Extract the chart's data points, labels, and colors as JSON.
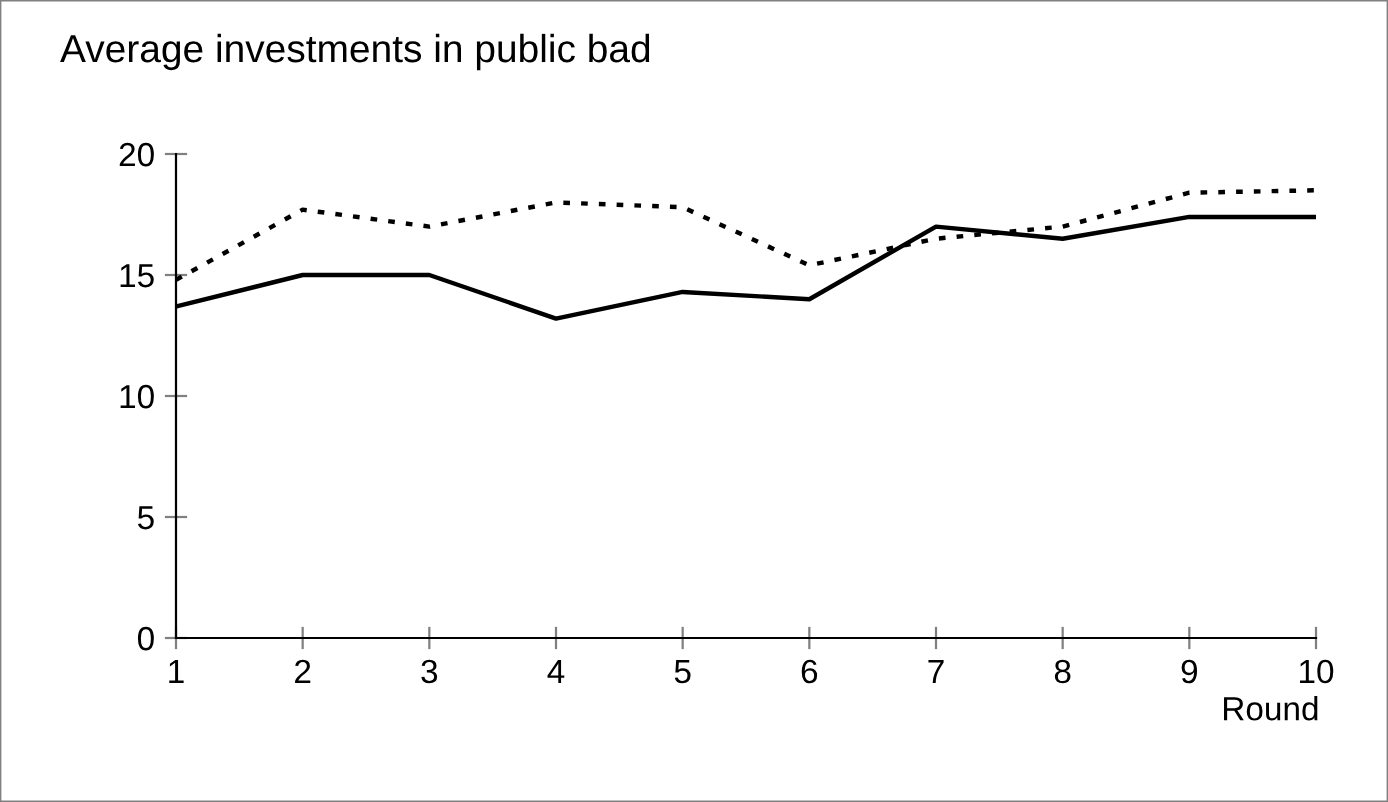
{
  "chart_data": {
    "type": "line",
    "title": "Average investments in public bad",
    "xlabel": "Round",
    "x": [
      1,
      2,
      3,
      4,
      5,
      6,
      7,
      8,
      9,
      10
    ],
    "series": [
      {
        "color": "#000000",
        "line_style": "solid",
        "values": [
          13.7,
          15.0,
          15.0,
          13.2,
          14.3,
          14.0,
          17.0,
          16.5,
          17.4,
          17.4
        ]
      },
      {
        "color": "#000000",
        "line_style": "dotted",
        "values": [
          14.8,
          17.7,
          17.0,
          18.0,
          17.8,
          15.4,
          16.5,
          17.0,
          18.4,
          18.5
        ]
      }
    ],
    "xlim": [
      1,
      10
    ],
    "xticks": [
      1,
      2,
      3,
      4,
      5,
      6,
      7,
      8,
      9,
      10
    ],
    "ylim": [
      0,
      20
    ],
    "yticks": [
      0,
      5,
      10,
      15,
      20
    ],
    "grid": false,
    "legend": false,
    "marker": "none"
  }
}
